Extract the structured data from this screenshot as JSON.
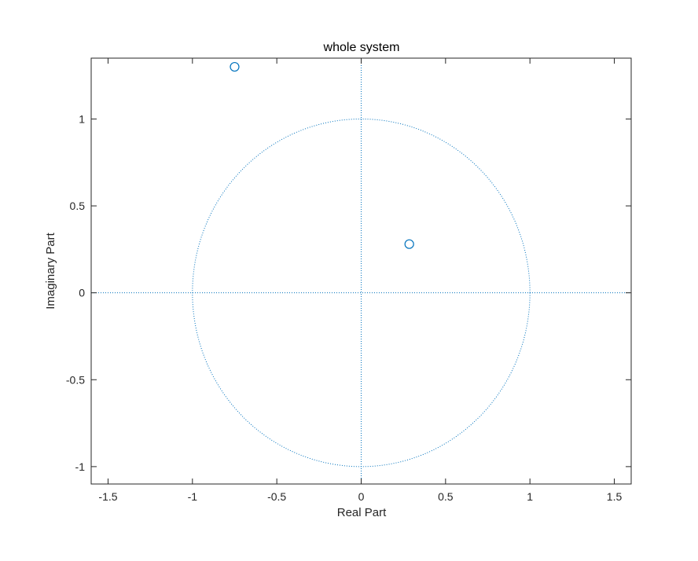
{
  "chart_data": {
    "type": "scatter",
    "title": "whole system",
    "xlabel": "Real Part",
    "ylabel": "Imaginary Part",
    "xlim": [
      -1.6,
      1.6
    ],
    "ylim": [
      -1.1,
      1.35
    ],
    "xticks": [
      -1.5,
      -1,
      -0.5,
      0,
      0.5,
      1,
      1.5
    ],
    "xtick_labels": [
      "-1.5",
      "-1",
      "-0.5",
      "0",
      "0.5",
      "1",
      "1.5"
    ],
    "yticks": [
      -1,
      -0.5,
      0,
      0.5,
      1
    ],
    "ytick_labels": [
      "-1",
      "-0.5",
      "0",
      "0.5",
      "1"
    ],
    "grid": false,
    "unit_circle": true,
    "marker": "circle-open",
    "points": [
      {
        "x": -0.75,
        "y": 1.3
      },
      {
        "x": 0.285,
        "y": 0.28
      }
    ],
    "colors": {
      "marker": "#0072BD",
      "reference_lines": "#0072BD",
      "axes": "#262626"
    }
  }
}
